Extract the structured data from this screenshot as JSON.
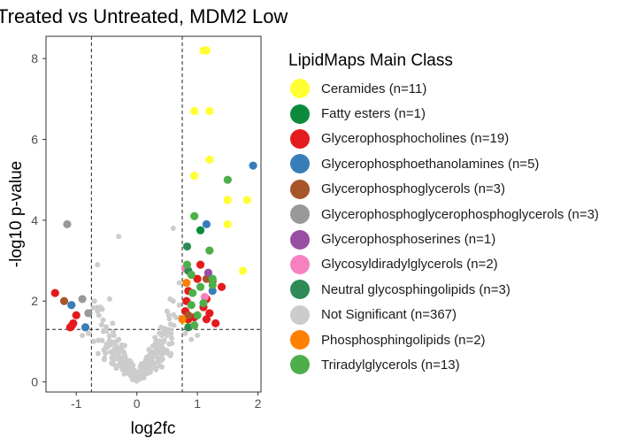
{
  "chart_data": {
    "type": "scatter",
    "title": "Treated vs Untreated, MDM2 Low",
    "xlabel": "log2fc",
    "ylabel": "-log10 p-value",
    "xlim": [
      -1.5,
      2.05
    ],
    "ylim": [
      -0.25,
      8.55
    ],
    "xticks": [
      -1,
      0,
      1,
      2
    ],
    "yticks": [
      0,
      2,
      4,
      6,
      8
    ],
    "xtick_labels": [
      "-1",
      "0",
      "1",
      "2"
    ],
    "ytick_labels": [
      "0",
      "2",
      "4",
      "6",
      "8"
    ],
    "grid": false,
    "threshold_lines": {
      "x": [
        -0.75,
        0.75
      ],
      "y": [
        1.3
      ]
    },
    "legend": {
      "title": "LipidMaps Main Class",
      "position": "right",
      "entries": [
        {
          "label": "Ceramides (n=11)",
          "color": "#ffff33"
        },
        {
          "label": "Fatty esters (n=1)",
          "color": "#0b8a3c"
        },
        {
          "label": "Glycerophosphocholines (n=19)",
          "color": "#e41a1c"
        },
        {
          "label": "Glycerophosphoethanolamines (n=5)",
          "color": "#377eb8"
        },
        {
          "label": "Glycerophosphoglycerols (n=3)",
          "color": "#a65628"
        },
        {
          "label": "Glycerophosphoglycerophosphoglycerols (n=3)",
          "color": "#999999"
        },
        {
          "label": "Glycerophosphoserines (n=1)",
          "color": "#984ea3"
        },
        {
          "label": "Glycosyldiradylglycerols (n=2)",
          "color": "#f781bf"
        },
        {
          "label": "Neutral glycosphingolipids (n=3)",
          "color": "#2e8b57"
        },
        {
          "label": "Not Significant (n=367)",
          "color": "#cccccc"
        },
        {
          "label": "Phosphosphingolipids (n=2)",
          "color": "#ff7f00"
        },
        {
          "label": "Triradylglycerols (n=13)",
          "color": "#4daf4a"
        }
      ]
    },
    "series": [
      {
        "name": "Ceramides (n=11)",
        "color": "#ffff33",
        "points": [
          [
            1.1,
            8.2
          ],
          [
            1.15,
            8.2
          ],
          [
            0.95,
            6.7
          ],
          [
            1.2,
            6.7
          ],
          [
            1.2,
            5.5
          ],
          [
            0.95,
            5.1
          ],
          [
            1.5,
            4.5
          ],
          [
            1.82,
            4.5
          ],
          [
            1.5,
            3.9
          ],
          [
            1.75,
            2.75
          ],
          [
            0.82,
            1.5
          ]
        ]
      },
      {
        "name": "Fatty esters (n=1)",
        "color": "#0b8a3c",
        "points": [
          [
            1.05,
            3.75
          ]
        ]
      },
      {
        "name": "Glycerophosphocholines (n=19)",
        "color": "#e41a1c",
        "points": [
          [
            -1.35,
            2.2
          ],
          [
            -1.0,
            1.65
          ],
          [
            -1.05,
            1.45
          ],
          [
            -1.1,
            1.35
          ],
          [
            -1.07,
            1.4
          ],
          [
            1.05,
            2.9
          ],
          [
            1.25,
            2.5
          ],
          [
            1.4,
            2.35
          ],
          [
            1.0,
            2.55
          ],
          [
            0.85,
            2.25
          ],
          [
            1.15,
            2.05
          ],
          [
            0.8,
            1.75
          ],
          [
            1.15,
            1.55
          ],
          [
            1.3,
            1.45
          ],
          [
            0.95,
            1.6
          ],
          [
            1.1,
            1.85
          ],
          [
            0.82,
            2.0
          ],
          [
            0.85,
            1.55
          ],
          [
            1.2,
            1.7
          ]
        ]
      },
      {
        "name": "Glycerophosphoethanolamines (n=5)",
        "color": "#377eb8",
        "points": [
          [
            1.92,
            5.35
          ],
          [
            1.15,
            3.9
          ],
          [
            -1.08,
            1.9
          ],
          [
            -0.85,
            1.35
          ],
          [
            1.25,
            2.25
          ]
        ]
      },
      {
        "name": "Glycerophosphoglycerols (n=3)",
        "color": "#a65628",
        "points": [
          [
            -1.2,
            2.0
          ],
          [
            1.15,
            2.55
          ],
          [
            0.85,
            1.65
          ]
        ]
      },
      {
        "name": "Glycerophosphoglycerophosphoglycerols (n=3)",
        "color": "#999999",
        "points": [
          [
            -1.15,
            3.9
          ],
          [
            -0.9,
            2.05
          ],
          [
            -0.8,
            1.7
          ]
        ]
      },
      {
        "name": "Glycerophosphoserines (n=1)",
        "color": "#984ea3",
        "points": [
          [
            1.18,
            2.7
          ]
        ]
      },
      {
        "name": "Glycosyldiradylglycerols (n=2)",
        "color": "#f781bf",
        "points": [
          [
            1.12,
            2.1
          ],
          [
            0.8,
            2.8
          ]
        ]
      },
      {
        "name": "Neutral glycosphingolipids (n=3)",
        "color": "#2e8b57",
        "points": [
          [
            0.83,
            3.35
          ],
          [
            0.85,
            2.75
          ],
          [
            0.85,
            1.35
          ]
        ]
      },
      {
        "name": "Phosphosphingolipids (n=2)",
        "color": "#ff7f00",
        "points": [
          [
            0.82,
            2.45
          ],
          [
            0.75,
            1.55
          ]
        ]
      },
      {
        "name": "Triradylglycerols (n=13)",
        "color": "#4daf4a",
        "points": [
          [
            1.5,
            5.0
          ],
          [
            0.95,
            4.1
          ],
          [
            1.2,
            3.25
          ],
          [
            0.83,
            2.9
          ],
          [
            0.9,
            2.65
          ],
          [
            1.25,
            2.55
          ],
          [
            0.92,
            2.2
          ],
          [
            1.05,
            2.35
          ],
          [
            1.1,
            1.95
          ],
          [
            0.9,
            1.9
          ],
          [
            1.0,
            1.65
          ],
          [
            1.25,
            2.4
          ],
          [
            0.95,
            1.4
          ]
        ]
      },
      {
        "name": "Not Significant (n=367)",
        "color": "#cccccc",
        "generated": "367 points with |log2fc| < 0.75 or p below threshold, forming the volcano cone",
        "points": [
          [
            -0.65,
            1.75
          ],
          [
            -0.6,
            1.85
          ],
          [
            -0.55,
            1.25
          ],
          [
            -0.45,
            2.05
          ],
          [
            -0.4,
            1.45
          ],
          [
            -0.3,
            1.05
          ],
          [
            -0.2,
            0.9
          ],
          [
            -0.1,
            0.5
          ],
          [
            0.0,
            0.1
          ],
          [
            0.1,
            0.4
          ],
          [
            0.2,
            0.8
          ],
          [
            0.3,
            1.1
          ],
          [
            0.4,
            1.35
          ],
          [
            0.5,
            1.75
          ],
          [
            0.6,
            2.0
          ],
          [
            0.7,
            1.9
          ],
          [
            0.55,
            2.05
          ],
          [
            -0.7,
            2.0
          ],
          [
            -0.3,
            3.6
          ],
          [
            0.6,
            3.8
          ],
          [
            -0.65,
            2.9
          ],
          [
            0.7,
            2.45
          ],
          [
            0.72,
            1.6
          ],
          [
            -0.8,
            1.2
          ],
          [
            -0.9,
            1.15
          ],
          [
            0.8,
            1.2
          ],
          [
            0.9,
            1.05
          ],
          [
            1.0,
            1.15
          ]
        ]
      }
    ]
  }
}
